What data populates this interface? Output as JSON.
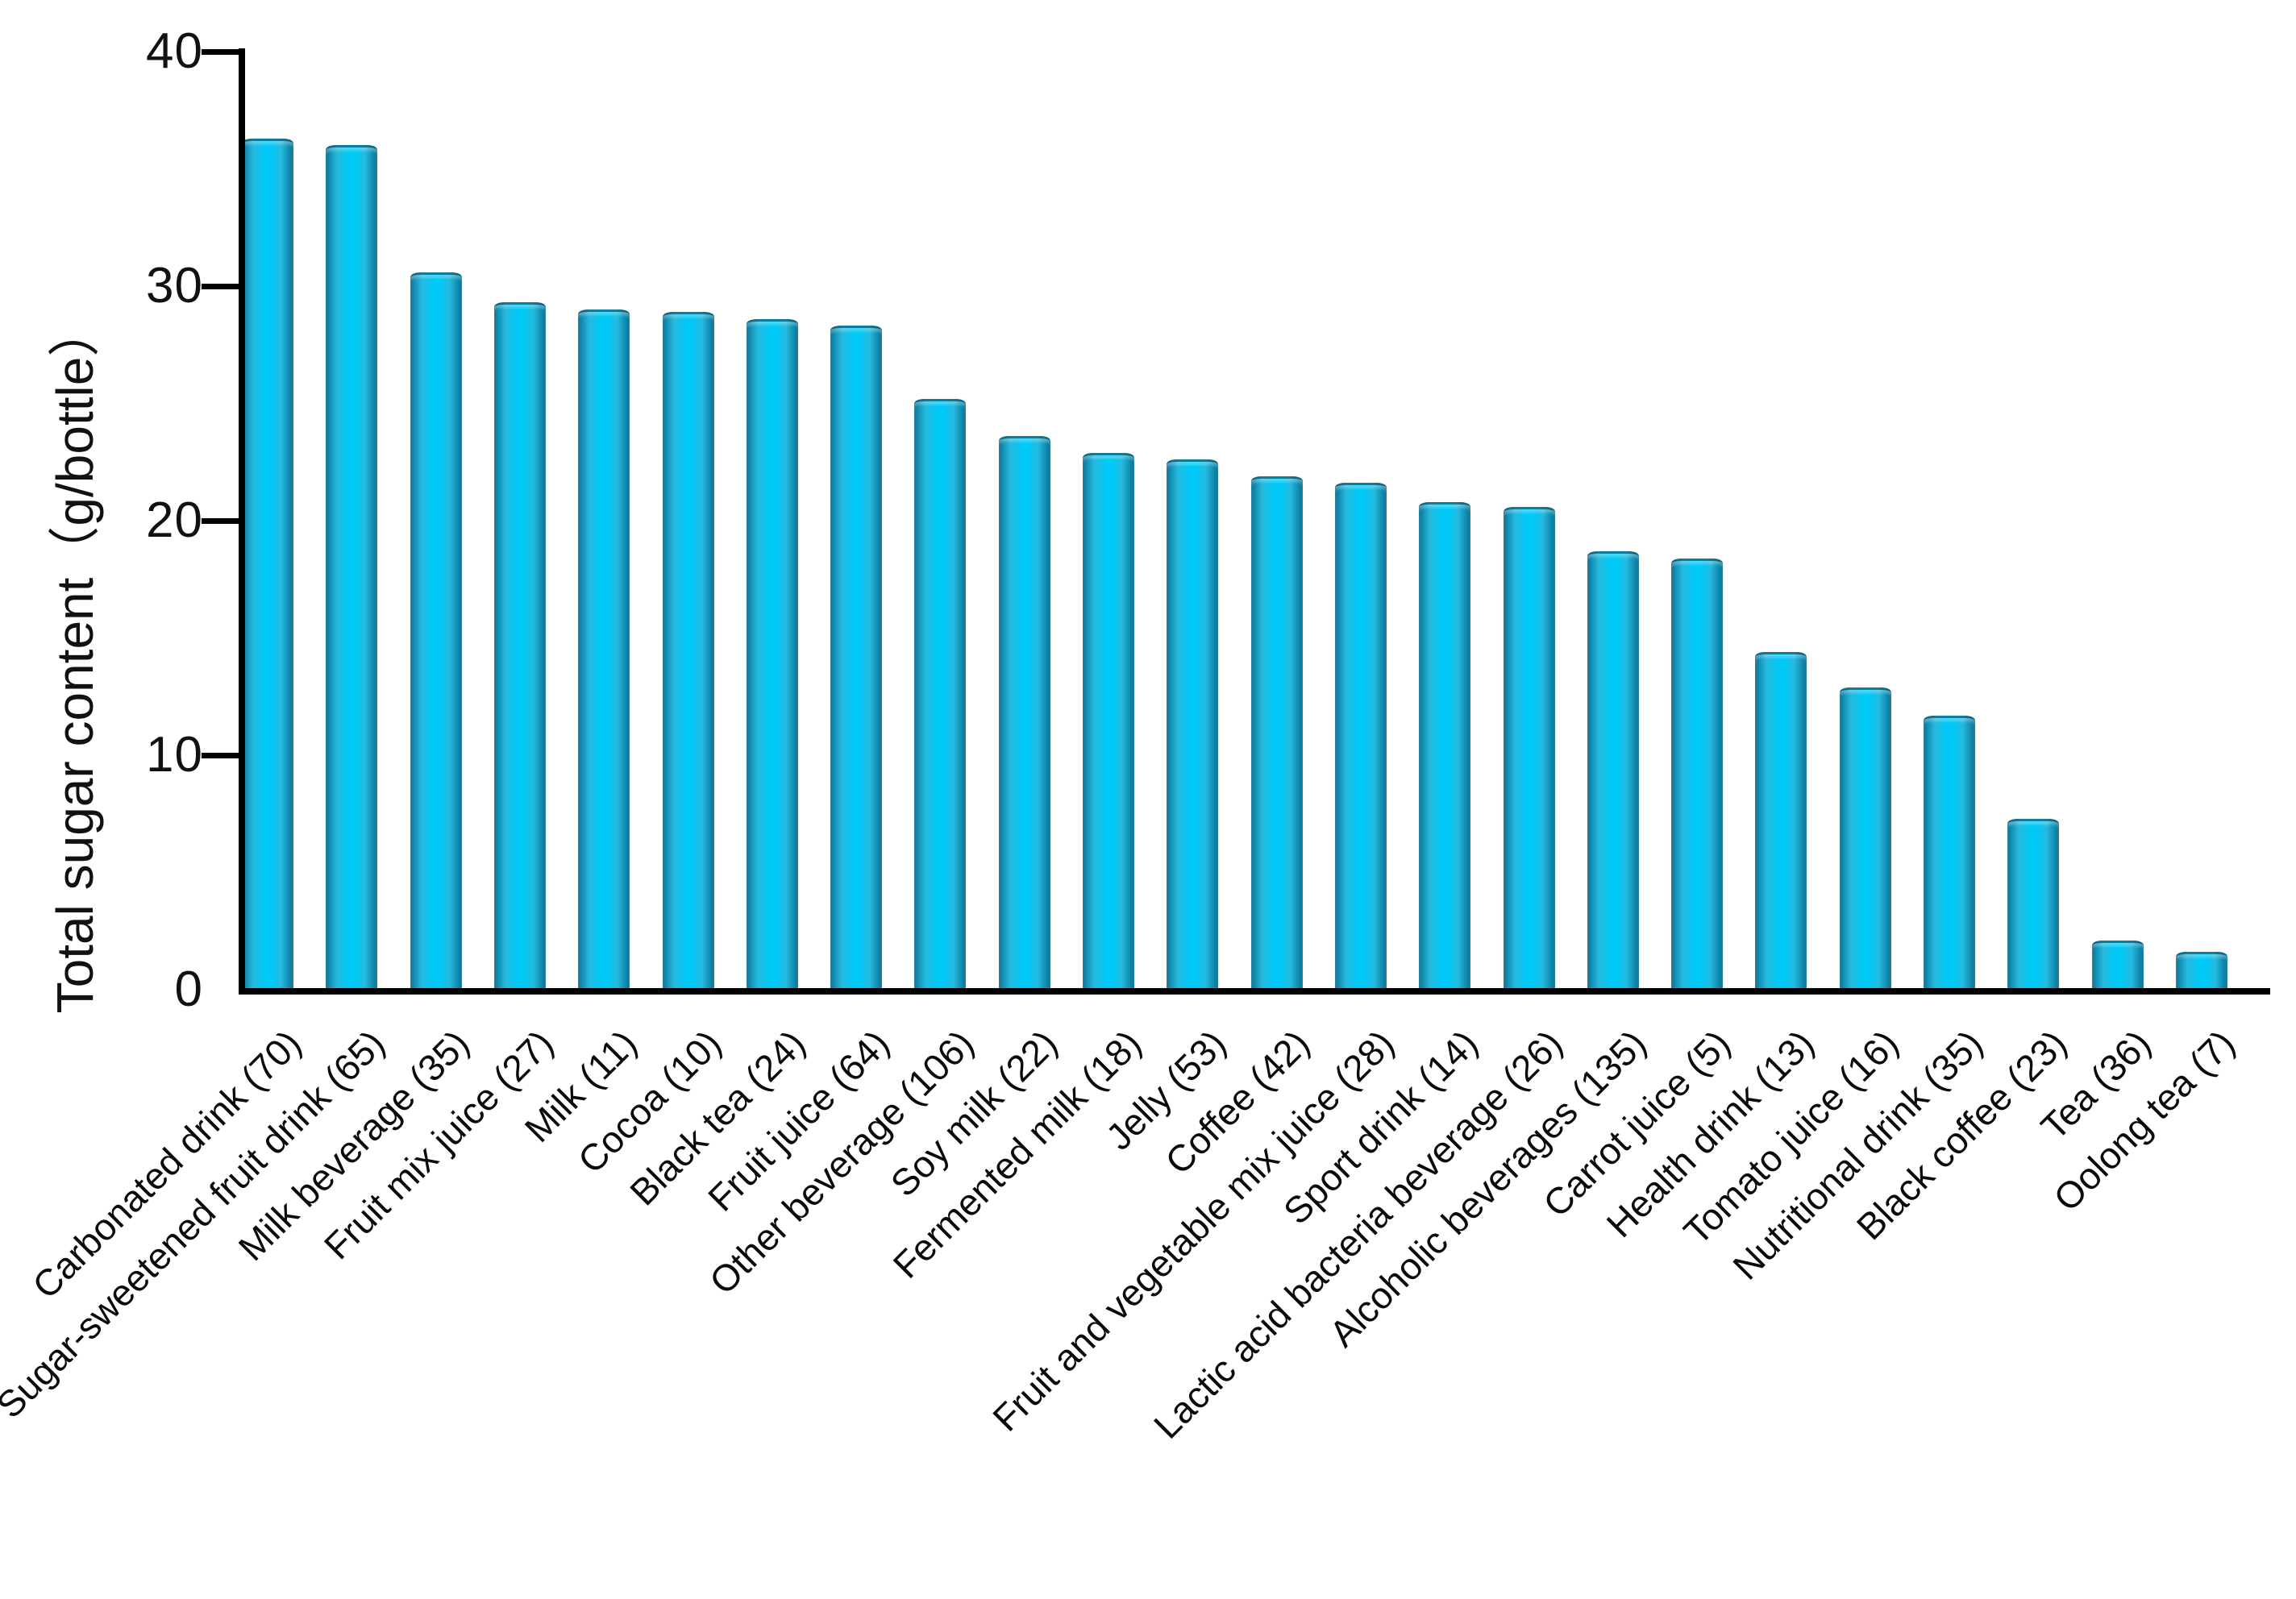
{
  "chart_data": {
    "type": "bar",
    "title": "",
    "xlabel": "",
    "ylabel": "Total sugar content（g/bottle）",
    "ylim": [
      0,
      40
    ],
    "yticks": [
      0,
      10,
      20,
      30,
      40
    ],
    "grid": false,
    "legend": false,
    "bar_color_center": "#00c9f7",
    "bar_color_edge": "#0b6f8e",
    "categories": [
      "Carbonated drink (70)",
      "Sugar-sweetened fruit drink (65)",
      "Milk beverage (35)",
      "Fruit mix juice (27)",
      "Milk (11)",
      "Cocoa (10)",
      "Black tea (24)",
      "Fruit juice (64)",
      "Other beverage (106)",
      "Soy milk (22)",
      "Fermented milk (18)",
      "Jelly (53)",
      "Coffee (42)",
      "Fruit and vegetable mix juice (28)",
      "Sport drink (14)",
      "Lactic acid bacteria beverage (26)",
      "Alcoholic beverages (135)",
      "Carrot juice (5)",
      "Health drink (13)",
      "Tomato juice (16)",
      "Nutritional drink (35)",
      "Black coffee (23)",
      "Tea (36)",
      "Oolong tea (7)"
    ],
    "sample_sizes": [
      70,
      65,
      35,
      27,
      11,
      10,
      24,
      64,
      106,
      22,
      18,
      53,
      42,
      28,
      14,
      26,
      135,
      5,
      13,
      16,
      35,
      23,
      36,
      7
    ],
    "values": [
      36.3,
      36.0,
      30.6,
      29.3,
      29.0,
      28.9,
      28.6,
      28.3,
      25.2,
      23.6,
      22.9,
      22.6,
      21.9,
      21.6,
      20.8,
      20.6,
      18.7,
      18.4,
      14.4,
      12.9,
      11.7,
      7.3,
      2.1,
      1.6
    ]
  }
}
